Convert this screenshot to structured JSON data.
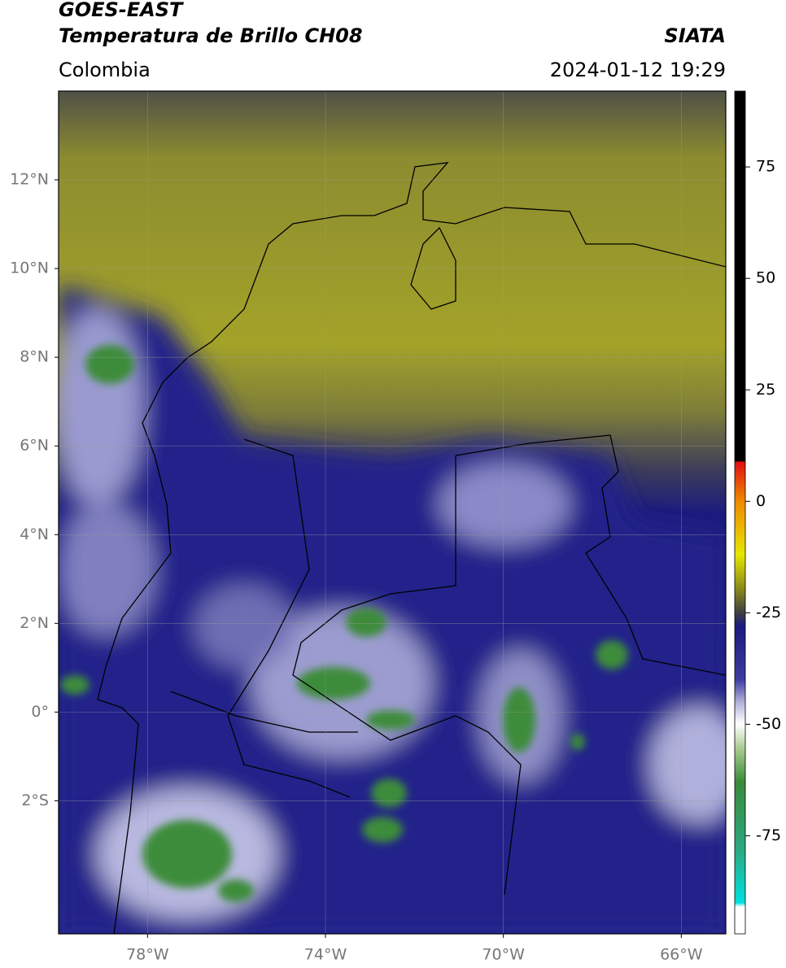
{
  "header": {
    "satellite": "GOES-EAST",
    "product": "Temperatura de Brillo CH08",
    "source": "SIATA",
    "region": "Colombia",
    "datetime": "2024-01-12 19:29"
  },
  "map": {
    "xlim": [
      -80,
      -65
    ],
    "ylim": [
      -5,
      14
    ],
    "grid": true,
    "xticks": [
      {
        "value": -78,
        "label": "78°W"
      },
      {
        "value": -74,
        "label": "74°W"
      },
      {
        "value": -70,
        "label": "70°W"
      },
      {
        "value": -66,
        "label": "66°W"
      }
    ],
    "yticks": [
      {
        "value": 12,
        "label": "12°N"
      },
      {
        "value": 10,
        "label": "10°N"
      },
      {
        "value": 8,
        "label": "8°N"
      },
      {
        "value": 6,
        "label": "6°N"
      },
      {
        "value": 4,
        "label": "4°N"
      },
      {
        "value": 2,
        "label": "2°N"
      },
      {
        "value": 0,
        "label": "0°"
      },
      {
        "value": -2,
        "label": "2°S"
      }
    ]
  },
  "colorbar": {
    "lim": [
      -97,
      92
    ],
    "ticks": [
      75,
      50,
      25,
      0,
      -25,
      -50,
      -75
    ]
  }
}
